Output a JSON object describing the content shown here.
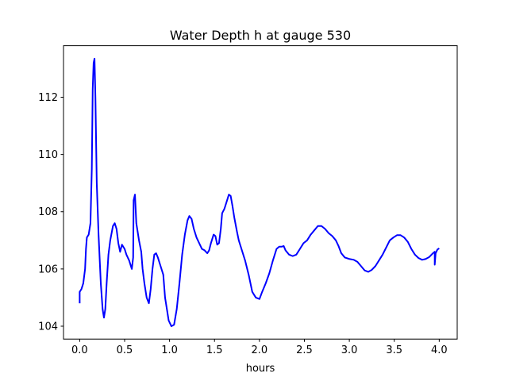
{
  "chart_data": {
    "type": "line",
    "title": "Water Depth h at gauge 530",
    "xlabel": "hours",
    "ylabel": "",
    "xlim": [
      -0.18,
      4.2
    ],
    "ylim": [
      103.55,
      113.8
    ],
    "x_ticks": [
      0.0,
      0.5,
      1.0,
      1.5,
      2.0,
      2.5,
      3.0,
      3.5,
      4.0
    ],
    "x_tick_labels": [
      "0.0",
      "0.5",
      "1.0",
      "1.5",
      "2.0",
      "2.5",
      "3.0",
      "3.5",
      "4.0"
    ],
    "y_ticks": [
      104,
      106,
      108,
      110,
      112
    ],
    "y_tick_labels": [
      "104",
      "106",
      "108",
      "110",
      "112"
    ],
    "grid": false,
    "series": [
      {
        "color": "#0000ff",
        "points": [
          [
            0.0,
            104.8
          ],
          [
            0.0,
            105.2
          ],
          [
            0.02,
            105.3
          ],
          [
            0.04,
            105.5
          ],
          [
            0.06,
            106.0
          ],
          [
            0.07,
            106.7
          ],
          [
            0.08,
            107.1
          ],
          [
            0.1,
            107.2
          ],
          [
            0.12,
            107.6
          ],
          [
            0.135,
            109.5
          ],
          [
            0.145,
            112.3
          ],
          [
            0.155,
            113.2
          ],
          [
            0.165,
            113.35
          ],
          [
            0.175,
            112.0
          ],
          [
            0.19,
            109.0
          ],
          [
            0.21,
            107.2
          ],
          [
            0.235,
            105.5
          ],
          [
            0.255,
            104.6
          ],
          [
            0.27,
            104.3
          ],
          [
            0.285,
            104.6
          ],
          [
            0.3,
            105.5
          ],
          [
            0.32,
            106.5
          ],
          [
            0.34,
            107.0
          ],
          [
            0.37,
            107.5
          ],
          [
            0.39,
            107.6
          ],
          [
            0.41,
            107.4
          ],
          [
            0.43,
            106.9
          ],
          [
            0.45,
            106.6
          ],
          [
            0.47,
            106.85
          ],
          [
            0.5,
            106.7
          ],
          [
            0.52,
            106.5
          ],
          [
            0.55,
            106.3
          ],
          [
            0.58,
            106.0
          ],
          [
            0.595,
            106.4
          ],
          [
            0.6,
            108.4
          ],
          [
            0.615,
            108.6
          ],
          [
            0.63,
            107.6
          ],
          [
            0.66,
            107.0
          ],
          [
            0.685,
            106.6
          ],
          [
            0.7,
            106.0
          ],
          [
            0.72,
            105.5
          ],
          [
            0.745,
            105.0
          ],
          [
            0.77,
            104.8
          ],
          [
            0.79,
            105.3
          ],
          [
            0.81,
            106.0
          ],
          [
            0.83,
            106.5
          ],
          [
            0.85,
            106.55
          ],
          [
            0.87,
            106.4
          ],
          [
            0.9,
            106.1
          ],
          [
            0.93,
            105.8
          ],
          [
            0.95,
            105.0
          ],
          [
            0.97,
            104.6
          ],
          [
            0.99,
            104.2
          ],
          [
            1.02,
            104.0
          ],
          [
            1.05,
            104.05
          ],
          [
            1.08,
            104.6
          ],
          [
            1.11,
            105.5
          ],
          [
            1.14,
            106.5
          ],
          [
            1.17,
            107.2
          ],
          [
            1.2,
            107.7
          ],
          [
            1.22,
            107.85
          ],
          [
            1.245,
            107.75
          ],
          [
            1.27,
            107.4
          ],
          [
            1.3,
            107.1
          ],
          [
            1.33,
            106.9
          ],
          [
            1.36,
            106.7
          ],
          [
            1.39,
            106.65
          ],
          [
            1.42,
            106.55
          ],
          [
            1.44,
            106.65
          ],
          [
            1.46,
            106.9
          ],
          [
            1.49,
            107.2
          ],
          [
            1.51,
            107.15
          ],
          [
            1.53,
            106.85
          ],
          [
            1.55,
            106.9
          ],
          [
            1.57,
            107.4
          ],
          [
            1.585,
            107.95
          ],
          [
            1.61,
            108.1
          ],
          [
            1.64,
            108.4
          ],
          [
            1.66,
            108.6
          ],
          [
            1.68,
            108.55
          ],
          [
            1.7,
            108.2
          ],
          [
            1.72,
            107.8
          ],
          [
            1.75,
            107.3
          ],
          [
            1.77,
            107.0
          ],
          [
            1.8,
            106.7
          ],
          [
            1.84,
            106.3
          ],
          [
            1.88,
            105.8
          ],
          [
            1.92,
            105.2
          ],
          [
            1.96,
            105.0
          ],
          [
            2.0,
            104.95
          ],
          [
            2.03,
            105.2
          ],
          [
            2.07,
            105.5
          ],
          [
            2.11,
            105.85
          ],
          [
            2.15,
            106.3
          ],
          [
            2.19,
            106.7
          ],
          [
            2.22,
            106.78
          ],
          [
            2.25,
            106.78
          ],
          [
            2.27,
            106.8
          ],
          [
            2.29,
            106.65
          ],
          [
            2.33,
            106.5
          ],
          [
            2.37,
            106.45
          ],
          [
            2.41,
            106.5
          ],
          [
            2.45,
            106.7
          ],
          [
            2.49,
            106.9
          ],
          [
            2.53,
            107.0
          ],
          [
            2.57,
            107.2
          ],
          [
            2.61,
            107.35
          ],
          [
            2.65,
            107.5
          ],
          [
            2.69,
            107.5
          ],
          [
            2.73,
            107.4
          ],
          [
            2.77,
            107.25
          ],
          [
            2.81,
            107.15
          ],
          [
            2.85,
            107.0
          ],
          [
            2.88,
            106.8
          ],
          [
            2.91,
            106.55
          ],
          [
            2.95,
            106.4
          ],
          [
            3.0,
            106.35
          ],
          [
            3.05,
            106.32
          ],
          [
            3.09,
            106.25
          ],
          [
            3.13,
            106.1
          ],
          [
            3.17,
            105.95
          ],
          [
            3.21,
            105.9
          ],
          [
            3.25,
            105.97
          ],
          [
            3.29,
            106.1
          ],
          [
            3.33,
            106.3
          ],
          [
            3.37,
            106.5
          ],
          [
            3.41,
            106.75
          ],
          [
            3.45,
            107.0
          ],
          [
            3.49,
            107.1
          ],
          [
            3.53,
            107.18
          ],
          [
            3.57,
            107.18
          ],
          [
            3.61,
            107.1
          ],
          [
            3.65,
            106.95
          ],
          [
            3.69,
            106.7
          ],
          [
            3.73,
            106.5
          ],
          [
            3.77,
            106.38
          ],
          [
            3.81,
            106.32
          ],
          [
            3.85,
            106.35
          ],
          [
            3.89,
            106.42
          ],
          [
            3.93,
            106.55
          ],
          [
            3.95,
            106.6
          ],
          [
            3.95,
            106.15
          ],
          [
            3.96,
            106.55
          ],
          [
            3.98,
            106.68
          ],
          [
            4.0,
            106.72
          ]
        ]
      }
    ]
  }
}
